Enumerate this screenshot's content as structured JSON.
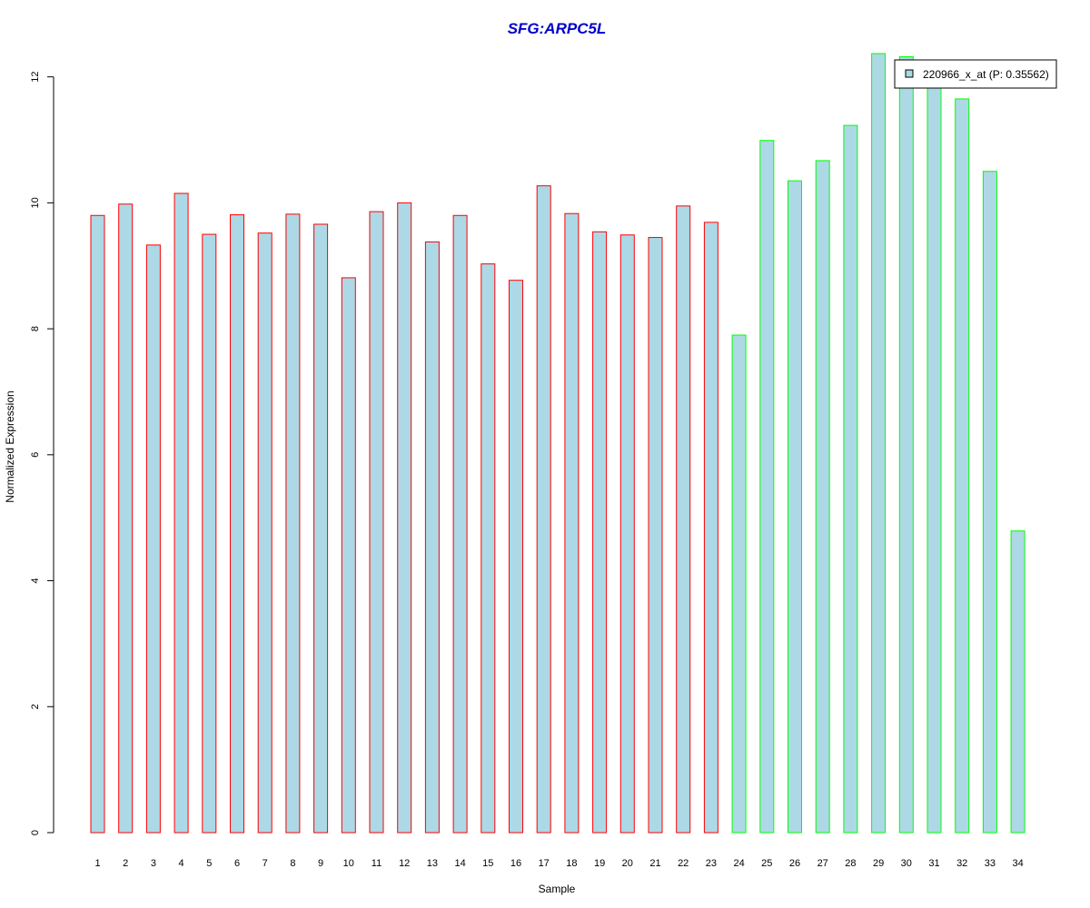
{
  "chart_data": {
    "type": "bar",
    "title": "SFG:ARPC5L",
    "xlabel": "Sample",
    "ylabel": "Normalized Expression",
    "categories": [
      "1",
      "2",
      "3",
      "4",
      "5",
      "6",
      "7",
      "8",
      "9",
      "10",
      "11",
      "12",
      "13",
      "14",
      "15",
      "16",
      "17",
      "18",
      "19",
      "20",
      "21",
      "22",
      "23",
      "24",
      "25",
      "26",
      "27",
      "28",
      "29",
      "30",
      "31",
      "32",
      "33",
      "34"
    ],
    "series": [
      {
        "name": "220966_x_at (P: 0.35562)",
        "values": [
          9.8,
          9.98,
          9.33,
          10.15,
          9.5,
          9.81,
          9.52,
          9.82,
          9.66,
          8.81,
          9.86,
          10.0,
          9.38,
          9.8,
          9.03,
          8.77,
          10.27,
          9.83,
          9.54,
          9.49,
          9.45,
          9.95,
          9.69,
          7.9,
          10.99,
          10.35,
          10.67,
          11.23,
          12.37,
          12.32,
          11.93,
          11.65,
          10.5,
          4.79
        ]
      }
    ],
    "groups": [
      1,
      1,
      1,
      1,
      1,
      1,
      1,
      1,
      1,
      1,
      1,
      1,
      1,
      1,
      1,
      1,
      1,
      1,
      1,
      1,
      1,
      1,
      1,
      2,
      2,
      2,
      2,
      2,
      2,
      2,
      2,
      2,
      2,
      2
    ],
    "ylim": [
      0,
      12.37
    ],
    "yticks": [
      0,
      2,
      4,
      6,
      8,
      10,
      12
    ],
    "grid": false,
    "legend_position": "top-right",
    "colors": {
      "title": "#0000CC",
      "bar_fill": "#ADD8E6",
      "group1_border": "#FF0000",
      "group2_border": "#00FF00",
      "axis": "#000000"
    }
  }
}
